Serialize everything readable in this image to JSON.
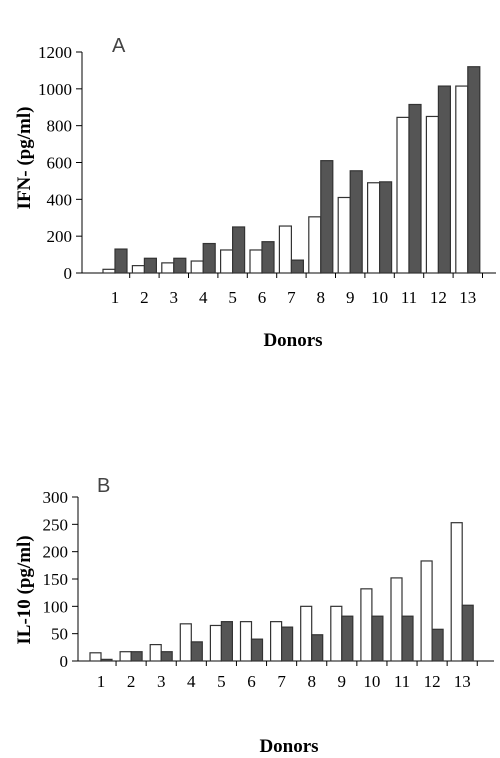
{
  "chart_data": [
    {
      "type": "bar",
      "panel_label": "A",
      "ylabel": "IFN-   (pg/ml)",
      "xlabel": "Donors",
      "ylim": [
        0,
        1200
      ],
      "yticks": [
        0,
        200,
        400,
        600,
        800,
        1000,
        1200
      ],
      "categories": [
        "1",
        "2",
        "3",
        "4",
        "5",
        "6",
        "7",
        "8",
        "9",
        "10",
        "11",
        "12",
        "13"
      ],
      "grid": false,
      "series": [
        {
          "fill": "#ffffff",
          "values": [
            20,
            40,
            55,
            65,
            125,
            125,
            255,
            305,
            410,
            490,
            845,
            850,
            1015
          ]
        },
        {
          "fill": "#555555",
          "values": [
            130,
            80,
            80,
            160,
            250,
            170,
            70,
            610,
            555,
            495,
            915,
            1015,
            1120
          ]
        }
      ]
    },
    {
      "type": "bar",
      "panel_label": "B",
      "ylabel": "IL-10 (pg/ml)",
      "xlabel": "Donors",
      "ylim": [
        0,
        300
      ],
      "yticks": [
        0,
        50,
        100,
        150,
        200,
        250,
        300
      ],
      "categories": [
        "1",
        "2",
        "3",
        "4",
        "5",
        "6",
        "7",
        "8",
        "9",
        "10",
        "11",
        "12",
        "13"
      ],
      "grid": false,
      "series": [
        {
          "fill": "#ffffff",
          "values": [
            15,
            17,
            30,
            68,
            65,
            72,
            72,
            100,
            100,
            132,
            152,
            183,
            253
          ]
        },
        {
          "fill": "#555555",
          "values": [
            3,
            17,
            17,
            35,
            72,
            40,
            62,
            48,
            82,
            82,
            82,
            58,
            102
          ]
        }
      ]
    }
  ]
}
